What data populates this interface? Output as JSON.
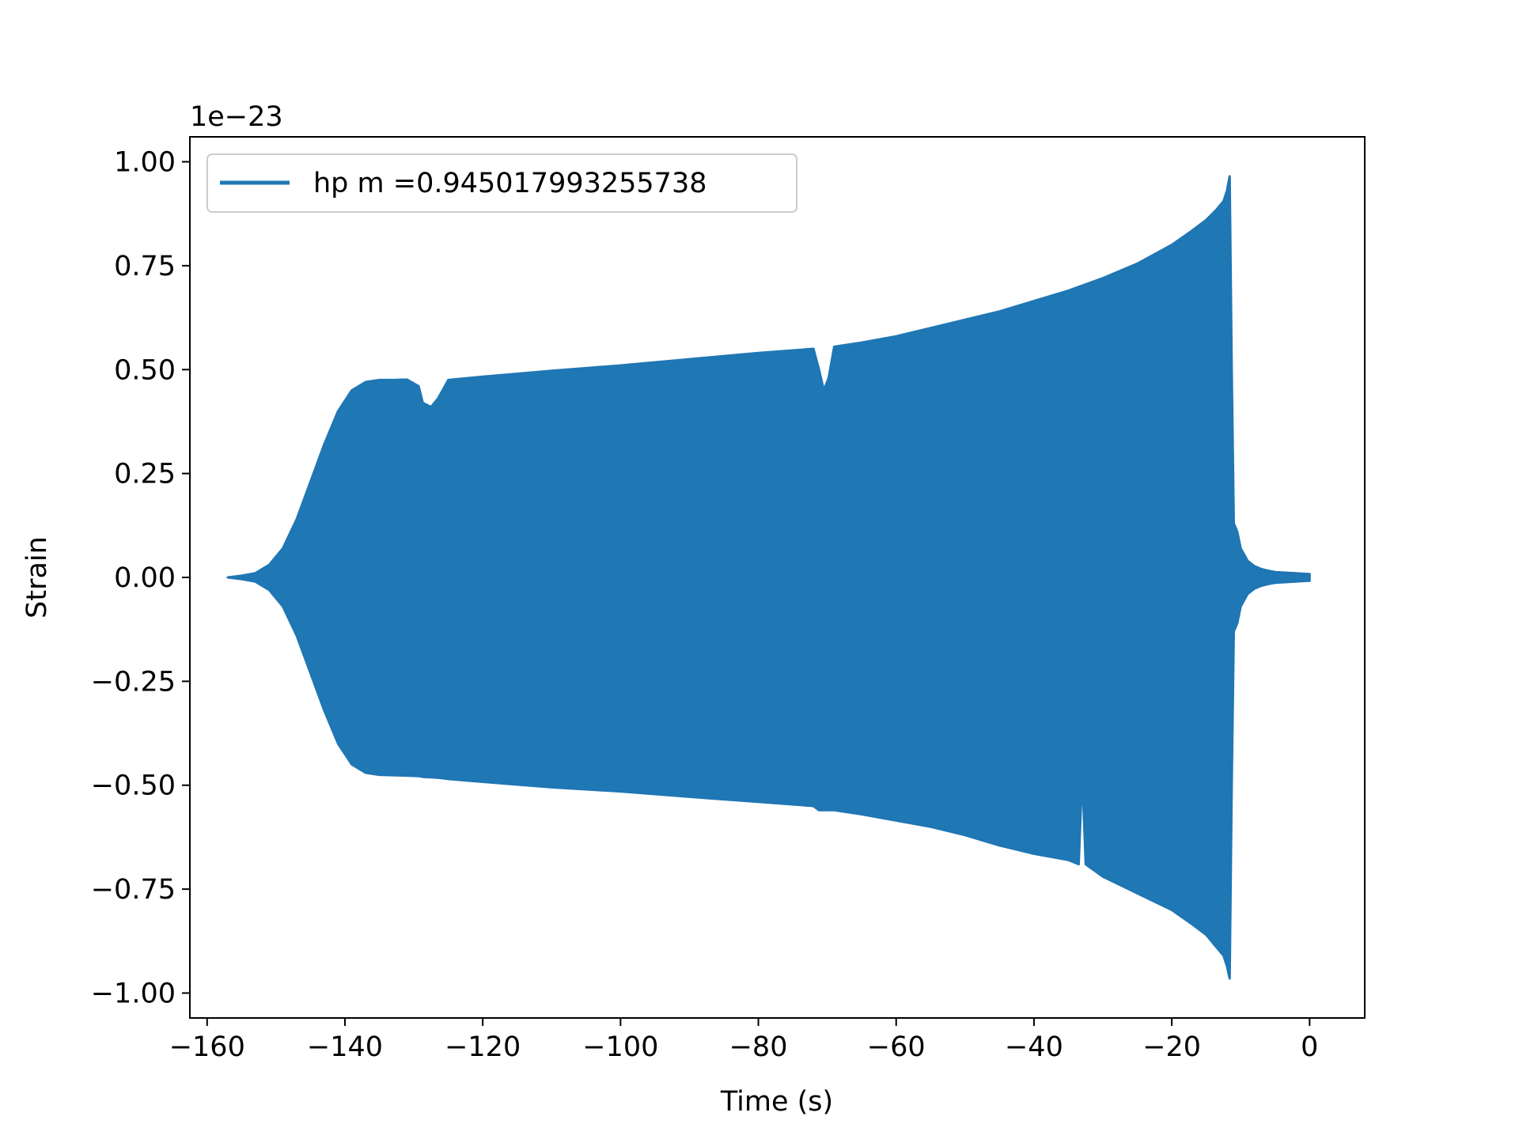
{
  "chart_data": {
    "type": "line",
    "title": "",
    "xlabel": "Time (s)",
    "ylabel": "Strain",
    "y_offset_text": "1e−23",
    "xlim": [
      -162.5,
      8
    ],
    "ylim": [
      -1.06,
      1.06
    ],
    "xticks": [
      -160,
      -140,
      -120,
      -100,
      -80,
      -60,
      -40,
      -20,
      0
    ],
    "xtick_labels": [
      "−160",
      "−140",
      "−120",
      "−100",
      "−80",
      "−60",
      "−40",
      "−20",
      "0"
    ],
    "yticks": [
      -1.0,
      -0.75,
      -0.5,
      -0.25,
      0.0,
      0.25,
      0.5,
      0.75,
      1.0
    ],
    "ytick_labels": [
      "−1.00",
      "−0.75",
      "−0.50",
      "−0.25",
      "0.00",
      "0.25",
      "0.50",
      "0.75",
      "1.00"
    ],
    "grid": false,
    "legend_position": "top-left",
    "series": [
      {
        "name": "hp m =0.945017993255738",
        "color": "#1f77b4",
        "envelope_upper": {
          "x": [
            -157,
            -155,
            -153,
            -151,
            -149,
            -147,
            -145,
            -143,
            -141,
            -139,
            -137,
            -135,
            -133,
            -131,
            -129.3,
            -128.7,
            -127.5,
            -126.5,
            -125.5,
            -125,
            -120,
            -110,
            -100,
            -90,
            -80,
            -72,
            -71.2,
            -70.5,
            -69.8,
            -69,
            -65,
            -60,
            -55,
            -50,
            -45,
            -40,
            -35,
            -30,
            -25,
            -20,
            -17,
            -15,
            -13.5,
            -12.5,
            -12.0,
            -11.6,
            -11.3,
            -11.0,
            -10.5,
            -10,
            -9,
            -8,
            -7,
            -6,
            -5,
            -4,
            -2,
            0
          ],
          "y": [
            0.0,
            0.004,
            0.01,
            0.03,
            0.07,
            0.14,
            0.23,
            0.32,
            0.4,
            0.45,
            0.47,
            0.475,
            0.475,
            0.476,
            0.46,
            0.42,
            0.41,
            0.43,
            0.46,
            0.475,
            0.483,
            0.497,
            0.51,
            0.525,
            0.54,
            0.55,
            0.5,
            0.45,
            0.48,
            0.555,
            0.565,
            0.58,
            0.6,
            0.62,
            0.64,
            0.665,
            0.69,
            0.72,
            0.755,
            0.8,
            0.835,
            0.86,
            0.885,
            0.905,
            0.93,
            0.965,
            0.5,
            0.13,
            0.11,
            0.07,
            0.04,
            0.027,
            0.02,
            0.016,
            0.013,
            0.012,
            0.01,
            0.008
          ]
        },
        "envelope_lower": {
          "x": [
            -157,
            -155,
            -153,
            -151,
            -149,
            -147,
            -145,
            -143,
            -141,
            -139,
            -137,
            -135,
            -133,
            -131,
            -129.3,
            -128.7,
            -127.5,
            -126.5,
            -125.5,
            -125,
            -120,
            -110,
            -100,
            -90,
            -80,
            -72,
            -71.2,
            -70.5,
            -69.8,
            -69,
            -65,
            -60,
            -55,
            -50,
            -45,
            -40,
            -35,
            -33.5,
            -33.0,
            -32.5,
            -30,
            -25,
            -20,
            -17,
            -15,
            -13.5,
            -12.5,
            -12.0,
            -11.6,
            -11.3,
            -11.0,
            -10.5,
            -10,
            -9,
            -8,
            -7,
            -6,
            -5,
            -4,
            -2,
            0
          ],
          "y": [
            0.0,
            -0.004,
            -0.01,
            -0.03,
            -0.07,
            -0.14,
            -0.23,
            -0.32,
            -0.4,
            -0.45,
            -0.47,
            -0.475,
            -0.476,
            -0.477,
            -0.478,
            -0.48,
            -0.481,
            -0.482,
            -0.484,
            -0.485,
            -0.492,
            -0.505,
            -0.515,
            -0.528,
            -0.54,
            -0.55,
            -0.56,
            -0.56,
            -0.56,
            -0.56,
            -0.57,
            -0.585,
            -0.6,
            -0.62,
            -0.645,
            -0.665,
            -0.68,
            -0.69,
            -0.47,
            -0.69,
            -0.72,
            -0.76,
            -0.8,
            -0.835,
            -0.86,
            -0.89,
            -0.91,
            -0.935,
            -0.965,
            -0.5,
            -0.13,
            -0.11,
            -0.07,
            -0.04,
            -0.027,
            -0.02,
            -0.016,
            -0.013,
            -0.012,
            -0.01,
            -0.008
          ]
        }
      }
    ]
  }
}
